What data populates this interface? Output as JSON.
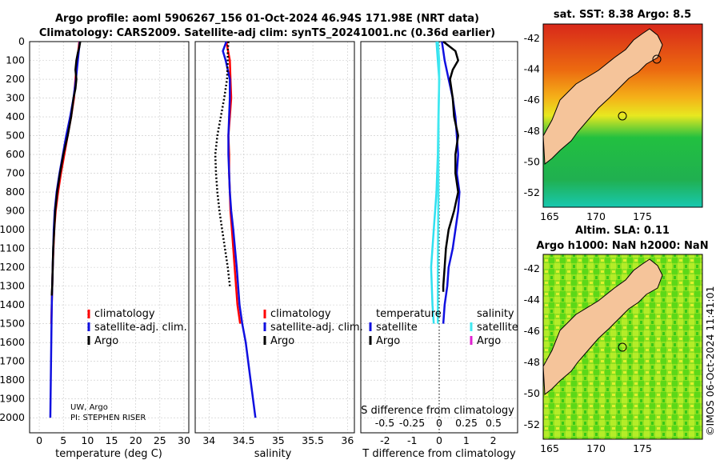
{
  "title_line1": "Argo profile: aoml 5906267_156 01-Oct-2024 46.94S 171.98E (NRT data)",
  "title_line2": "Climatology: CARS2009. Satellite-adj clim: synTS_20241001.nc (0.36d earlier)",
  "colors": {
    "climatology": "#ff0000",
    "satellite": "#1010e0",
    "argo": "#000000",
    "sat_t": "#30e0f0",
    "sat_s": "#40e8f0",
    "argo_s": "#e020d0"
  },
  "chart_data": [
    {
      "type": "line",
      "name": "temperature-panel",
      "xlabel": "temperature (deg C)",
      "ylabel": "",
      "xlim": [
        -2,
        31
      ],
      "ylim": [
        0,
        2080
      ],
      "xticks": [
        "0",
        "5",
        "10",
        "15",
        "20",
        "25",
        "30"
      ],
      "yticks": [
        "0",
        "100",
        "200",
        "300",
        "400",
        "500",
        "600",
        "700",
        "800",
        "900",
        "1000",
        "1100",
        "1200",
        "1300",
        "1400",
        "1500",
        "1600",
        "1700",
        "1800",
        "1900",
        "2000"
      ],
      "legend": [
        "climatology",
        "satellite-adj. clim.",
        "Argo"
      ],
      "annotation": [
        "UW, Argo",
        "PI: STEPHEN RISER"
      ],
      "series": [
        {
          "name": "climatology",
          "depth": [
            0,
            50,
            100,
            200,
            300,
            400,
            500,
            600,
            700,
            800,
            900,
            1000,
            1200,
            1400,
            1500
          ],
          "values": [
            8.3,
            8.1,
            7.9,
            7.5,
            7.2,
            6.6,
            5.9,
            5.2,
            4.5,
            3.9,
            3.4,
            3.1,
            2.8,
            2.6,
            2.5
          ]
        },
        {
          "name": "satellite-adj. clim.",
          "depth": [
            0,
            50,
            100,
            200,
            300,
            400,
            500,
            600,
            700,
            800,
            900,
            1000,
            1200,
            1400,
            1600,
            1800,
            2000
          ],
          "values": [
            8.4,
            8.2,
            8.0,
            7.6,
            7.1,
            6.4,
            5.6,
            4.9,
            4.2,
            3.6,
            3.2,
            3.0,
            2.8,
            2.6,
            2.5,
            2.4,
            2.3
          ]
        },
        {
          "name": "Argo",
          "depth": [
            0,
            30,
            60,
            100,
            150,
            200,
            250,
            300,
            400,
            500,
            600,
            700,
            800,
            900,
            1000,
            1100,
            1200,
            1300,
            1350
          ],
          "values": [
            8.5,
            8.3,
            8.0,
            7.7,
            7.5,
            7.7,
            7.5,
            7.1,
            6.6,
            5.9,
            5.0,
            4.3,
            3.7,
            3.3,
            3.1,
            2.9,
            2.8,
            2.7,
            2.6
          ]
        }
      ]
    },
    {
      "type": "line",
      "name": "salinity-panel",
      "xlabel": "salinity",
      "ylabel": "",
      "xlim": [
        33.8,
        36.1
      ],
      "ylim": [
        0,
        2080
      ],
      "xticks": [
        "34",
        "34.5",
        "35",
        "35.5",
        "36"
      ],
      "legend": [
        "climatology",
        "satellite-adj. clim.",
        "Argo"
      ],
      "series": [
        {
          "name": "climatology",
          "depth": [
            0,
            100,
            200,
            300,
            400,
            500,
            600,
            700,
            800,
            900,
            1000,
            1200,
            1400,
            1500
          ],
          "values": [
            34.25,
            34.3,
            34.31,
            34.32,
            34.3,
            34.28,
            34.29,
            34.29,
            34.3,
            34.31,
            34.33,
            34.37,
            34.41,
            34.45
          ]
        },
        {
          "name": "satellite-adj. clim.",
          "depth": [
            0,
            50,
            100,
            200,
            300,
            400,
            500,
            600,
            700,
            800,
            900,
            1000,
            1200,
            1400,
            1500,
            1600,
            1800,
            2000
          ],
          "values": [
            34.25,
            34.2,
            34.24,
            34.3,
            34.3,
            34.29,
            34.28,
            34.28,
            34.29,
            34.3,
            34.32,
            34.35,
            34.4,
            34.44,
            34.48,
            34.53,
            34.6,
            34.67
          ]
        },
        {
          "name": "Argo",
          "depth": [
            0,
            50,
            100,
            200,
            300,
            400,
            500,
            600,
            700,
            800,
            900,
            1000,
            1100,
            1200,
            1300
          ],
          "values": [
            34.28,
            34.27,
            34.27,
            34.26,
            34.22,
            34.17,
            34.12,
            34.09,
            34.1,
            34.12,
            34.15,
            34.19,
            34.23,
            34.27,
            34.3
          ]
        }
      ]
    },
    {
      "type": "line",
      "name": "difference-panel",
      "xlabel": "T difference from climatology",
      "xlabel_top": "S difference from climatology",
      "xlim": [
        -2.9,
        2.9
      ],
      "ylim": [
        0,
        2080
      ],
      "xticks": [
        "-2",
        "-1",
        "0",
        "1",
        "2"
      ],
      "xticks_top": [
        "-0.5",
        "-0.25",
        "0",
        "0.25",
        "0.5"
      ],
      "legend_headers": [
        "temperature",
        "salinity"
      ],
      "legend": [
        "satellite",
        "Argo",
        "satellite",
        "Argo"
      ],
      "series": [
        {
          "name": "temperature satellite",
          "depth": [
            0,
            100,
            200,
            400,
            600,
            800,
            1000,
            1200,
            1400,
            1500
          ],
          "values": [
            -0.1,
            -0.05,
            0.0,
            -0.03,
            -0.05,
            -0.1,
            -0.2,
            -0.3,
            -0.25,
            -0.2
          ]
        },
        {
          "name": "temperature satellite-clim",
          "depth": [
            0,
            100,
            200,
            300,
            400,
            500,
            600,
            700,
            800,
            900,
            1000,
            1100,
            1200,
            1300,
            1400,
            1500
          ],
          "values": [
            0.1,
            0.2,
            0.35,
            0.5,
            0.6,
            0.65,
            0.7,
            0.65,
            0.75,
            0.7,
            0.6,
            0.5,
            0.35,
            0.3,
            0.2,
            0.15
          ]
        },
        {
          "name": "temperature Argo",
          "depth": [
            0,
            50,
            100,
            150,
            200,
            300,
            400,
            500,
            600,
            700,
            800,
            900,
            1000,
            1100,
            1200,
            1300,
            1330
          ],
          "values": [
            0.15,
            0.6,
            0.7,
            0.5,
            0.4,
            0.5,
            0.55,
            0.7,
            0.6,
            0.6,
            0.7,
            0.55,
            0.35,
            0.25,
            0.2,
            0.15,
            0.15
          ]
        },
        {
          "name": "salinity satellite",
          "depth": [
            0,
            100,
            200,
            400,
            600,
            800,
            1000,
            1200,
            1400,
            1500
          ],
          "values": [
            -0.05,
            0.0,
            0.0,
            -0.02,
            -0.03,
            -0.03,
            -0.04,
            -0.05,
            -0.05,
            -0.05
          ]
        }
      ]
    }
  ],
  "map1": {
    "title": "sat. SST: 8.38 Argo: 8.5",
    "yticks": [
      "-42",
      "-44",
      "-46",
      "-48",
      "-50",
      "-52"
    ],
    "xticks": [
      "165",
      "170",
      "175"
    ]
  },
  "map2": {
    "title_line1": "Altim. SLA: 0.11",
    "title_line2": "Argo h1000: NaN h2000: NaN",
    "yticks": [
      "-42",
      "-44",
      "-46",
      "-48",
      "-50",
      "-52"
    ],
    "xticks": [
      "165",
      "170",
      "175"
    ]
  },
  "imos_stamp": "©IMOS 06-Oct-2024 11:41:01"
}
